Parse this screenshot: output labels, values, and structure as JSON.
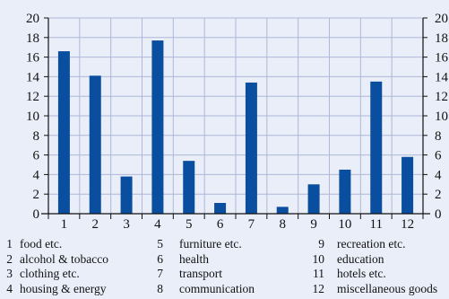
{
  "chart_data": {
    "type": "bar",
    "categories": [
      "1",
      "2",
      "3",
      "4",
      "5",
      "6",
      "7",
      "8",
      "9",
      "10",
      "11",
      "12"
    ],
    "values": [
      16.6,
      14.1,
      3.8,
      17.7,
      5.4,
      1.1,
      13.4,
      0.7,
      3.0,
      4.5,
      13.5,
      5.8
    ],
    "ylim": [
      0,
      20
    ],
    "yticks": [
      "0",
      "2",
      "4",
      "6",
      "8",
      "10",
      "12",
      "14",
      "16",
      "18",
      "20"
    ],
    "grid": true,
    "right_axis": true,
    "colors": {
      "bar": "#0a4ea0",
      "background": "#e9eef8",
      "grid": "#aeb8d8",
      "axis": "#111111"
    },
    "legend": [
      {
        "num": "1",
        "label": "food etc."
      },
      {
        "num": "2",
        "label": "alcohol & tobacco"
      },
      {
        "num": "3",
        "label": "clothing etc."
      },
      {
        "num": "4",
        "label": "housing & energy"
      },
      {
        "num": "5",
        "label": "furniture etc."
      },
      {
        "num": "6",
        "label": "health"
      },
      {
        "num": "7",
        "label": "transport"
      },
      {
        "num": "8",
        "label": "communication"
      },
      {
        "num": "9",
        "label": "recreation etc."
      },
      {
        "num": "10",
        "label": "education"
      },
      {
        "num": "11",
        "label": "hotels etc."
      },
      {
        "num": "12",
        "label": "miscellaneous goods"
      }
    ]
  }
}
